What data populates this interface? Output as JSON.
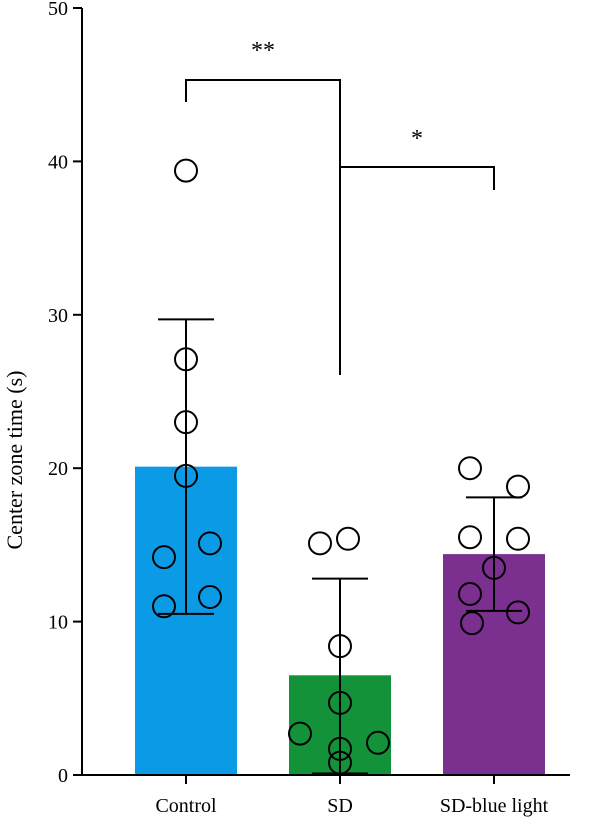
{
  "chart_data": {
    "type": "bar",
    "title": "",
    "xlabel": "",
    "ylabel": "Center zone time (s)",
    "ylim": [
      0,
      50
    ],
    "yticks": [
      0,
      10,
      20,
      30,
      40,
      50
    ],
    "grid": false,
    "legend": "none",
    "categories": [
      "Control",
      "SD",
      "SD-blue light"
    ],
    "values": [
      20.1,
      6.5,
      14.4
    ],
    "colors": [
      "#0b9be6",
      "#13923a",
      "#7b2f8f"
    ],
    "error_bars": [
      {
        "lower": 10.5,
        "upper": 29.7
      },
      {
        "lower": 0.1,
        "upper": 12.8
      },
      {
        "lower": 10.7,
        "upper": 18.1
      }
    ],
    "points": [
      [
        39.4,
        27.1,
        23.0,
        19.5,
        15.1,
        14.2,
        11.6,
        11.0
      ],
      [
        15.4,
        15.1,
        8.4,
        4.7,
        2.7,
        2.1,
        1.7,
        0.8
      ],
      [
        20.0,
        18.8,
        15.5,
        15.4,
        13.5,
        11.8,
        10.6,
        9.9
      ]
    ],
    "significance": [
      {
        "from": "Control",
        "to": "SD",
        "label": "**"
      },
      {
        "from": "SD",
        "to": "SD-blue light",
        "label": "*"
      }
    ]
  }
}
